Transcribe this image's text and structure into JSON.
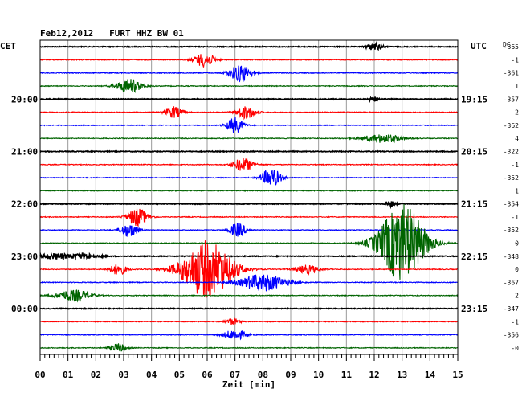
{
  "header": {
    "title": "Feb12,2012   FURT HHZ BW 01",
    "left_tz": "CET",
    "right_tz": "UTC",
    "dc_label": "DC"
  },
  "chart_data": {
    "type": "line",
    "title": "Feb12,2012   FURT HHZ BW 01",
    "xlabel": "Zeit [min]",
    "x_ticks": [
      "00",
      "01",
      "02",
      "03",
      "04",
      "05",
      "06",
      "07",
      "08",
      "09",
      "10",
      "11",
      "12",
      "13",
      "14",
      "15"
    ],
    "xlim": [
      0,
      15
    ],
    "left_time_labels": [
      {
        "row": 4,
        "label": "20:00"
      },
      {
        "row": 8,
        "label": "21:00"
      },
      {
        "row": 12,
        "label": "22:00"
      },
      {
        "row": 16,
        "label": "23:00"
      },
      {
        "row": 20,
        "label": "00:00"
      }
    ],
    "right_time_labels": [
      {
        "row": 4,
        "label": "19:15"
      },
      {
        "row": 8,
        "label": "20:15"
      },
      {
        "row": 12,
        "label": "21:15"
      },
      {
        "row": 16,
        "label": "22:15"
      },
      {
        "row": 20,
        "label": "23:15"
      }
    ],
    "trace_colors": [
      "#000000",
      "#ff0000",
      "#0000ff",
      "#006400"
    ],
    "rows": [
      {
        "dc": "-365",
        "events": [
          [
            12.0,
            0.25,
            0.5
          ]
        ]
      },
      {
        "dc": "-1",
        "events": [
          [
            5.9,
            0.35,
            1.0
          ]
        ]
      },
      {
        "dc": "-361",
        "events": [
          [
            7.2,
            0.4,
            1.2
          ]
        ]
      },
      {
        "dc": "1",
        "events": [
          [
            3.2,
            0.45,
            1.0
          ]
        ]
      },
      {
        "dc": "-357",
        "events": [
          [
            12.0,
            0.2,
            0.3
          ]
        ]
      },
      {
        "dc": "2",
        "events": [
          [
            4.8,
            0.3,
            0.8
          ],
          [
            7.4,
            0.35,
            0.9
          ]
        ]
      },
      {
        "dc": "-362",
        "events": [
          [
            7.0,
            0.3,
            1.1
          ]
        ]
      },
      {
        "dc": "4",
        "events": [
          [
            12.3,
            0.7,
            0.6
          ]
        ]
      },
      {
        "dc": "-322",
        "events": []
      },
      {
        "dc": "-1",
        "events": [
          [
            7.3,
            0.35,
            1.0
          ]
        ]
      },
      {
        "dc": "-352",
        "events": [
          [
            8.3,
            0.35,
            1.3
          ]
        ]
      },
      {
        "dc": "1",
        "events": []
      },
      {
        "dc": "-354",
        "events": [
          [
            12.6,
            0.15,
            0.4
          ]
        ]
      },
      {
        "dc": "-1",
        "events": [
          [
            3.5,
            0.35,
            1.3
          ]
        ]
      },
      {
        "dc": "-352",
        "events": [
          [
            3.2,
            0.3,
            1.0
          ],
          [
            7.1,
            0.3,
            1.0
          ]
        ]
      },
      {
        "dc": "0",
        "events": [
          [
            13.0,
            0.8,
            5.5
          ]
        ]
      },
      {
        "dc": "-348",
        "events": [
          [
            0.5,
            0.6,
            0.4
          ],
          [
            1.6,
            0.5,
            0.35
          ]
        ]
      },
      {
        "dc": "0",
        "events": [
          [
            6.0,
            0.9,
            4.0
          ],
          [
            2.8,
            0.3,
            0.8
          ],
          [
            9.6,
            0.4,
            0.6
          ]
        ]
      },
      {
        "dc": "-367",
        "events": [
          [
            8.0,
            0.8,
            1.2
          ]
        ]
      },
      {
        "dc": "2",
        "events": [
          [
            1.2,
            0.6,
            0.8
          ]
        ]
      },
      {
        "dc": "-347",
        "events": []
      },
      {
        "dc": "-1",
        "events": [
          [
            6.9,
            0.25,
            0.5
          ]
        ]
      },
      {
        "dc": "-356",
        "events": [
          [
            7.0,
            0.4,
            0.7
          ]
        ]
      },
      {
        "dc": "-0",
        "events": [
          [
            2.8,
            0.3,
            0.6
          ]
        ]
      }
    ]
  }
}
